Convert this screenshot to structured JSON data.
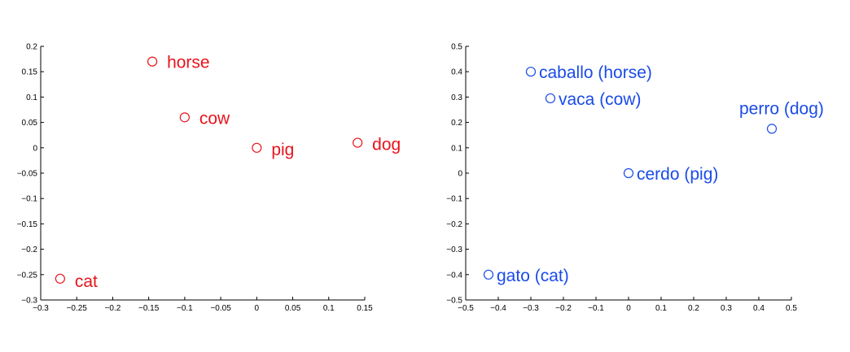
{
  "chart_data": [
    {
      "type": "scatter",
      "xlim": [
        -0.3,
        0.15
      ],
      "ylim": [
        -0.3,
        0.2
      ],
      "xticks": [
        -0.3,
        -0.25,
        -0.2,
        -0.15,
        -0.1,
        -0.05,
        0,
        0.05,
        0.1,
        0.15
      ],
      "yticks": [
        -0.3,
        -0.25,
        -0.2,
        -0.15,
        -0.1,
        -0.05,
        0,
        0.05,
        0.1,
        0.15,
        0.2
      ],
      "xtick_labels": [
        "−0.3",
        "−0.25",
        "−0.2",
        "−0.15",
        "−0.1",
        "−0.05",
        "0",
        "0.05",
        "0.1",
        "0.15"
      ],
      "ytick_labels": [
        "−0.3",
        "−0.25",
        "−0.2",
        "−0.15",
        "−0.1",
        "−0.05",
        "0",
        "0.05",
        "0.1",
        "0.15",
        "0.2"
      ],
      "grid": false,
      "color": "#e8141c",
      "points": [
        {
          "label": "horse",
          "x": -0.145,
          "y": 0.17
        },
        {
          "label": "cow",
          "x": -0.1,
          "y": 0.06
        },
        {
          "label": "pig",
          "x": 0.0,
          "y": 0.0
        },
        {
          "label": "dog",
          "x": 0.14,
          "y": 0.01
        },
        {
          "label": "cat",
          "x": -0.273,
          "y": -0.258
        }
      ]
    },
    {
      "type": "scatter",
      "xlim": [
        -0.5,
        0.5
      ],
      "ylim": [
        -0.5,
        0.5
      ],
      "xticks": [
        -0.5,
        -0.4,
        -0.3,
        -0.2,
        -0.1,
        0,
        0.1,
        0.2,
        0.3,
        0.4,
        0.5
      ],
      "yticks": [
        -0.5,
        -0.4,
        -0.3,
        -0.2,
        -0.1,
        0,
        0.1,
        0.2,
        0.3,
        0.4,
        0.5
      ],
      "xtick_labels": [
        "−0.5",
        "−0.4",
        "−0.3",
        "−0.2",
        "−0.1",
        "0",
        "0.1",
        "0.2",
        "0.3",
        "0.4",
        "0.5"
      ],
      "ytick_labels": [
        "−0.5",
        "−0.4",
        "−0.3",
        "−0.2",
        "−0.1",
        "0",
        "0.1",
        "0.2",
        "0.3",
        "0.4",
        "0.5"
      ],
      "grid": false,
      "color": "#1a4be8",
      "points": [
        {
          "label": "caballo (horse)",
          "x": -0.3,
          "y": 0.4
        },
        {
          "label": "vaca (cow)",
          "x": -0.24,
          "y": 0.295
        },
        {
          "label": "perro (dog)",
          "x": 0.44,
          "y": 0.175
        },
        {
          "label": "cerdo (pig)",
          "x": 0.0,
          "y": 0.0
        },
        {
          "label": "gato (cat)",
          "x": -0.43,
          "y": -0.4
        }
      ]
    }
  ]
}
